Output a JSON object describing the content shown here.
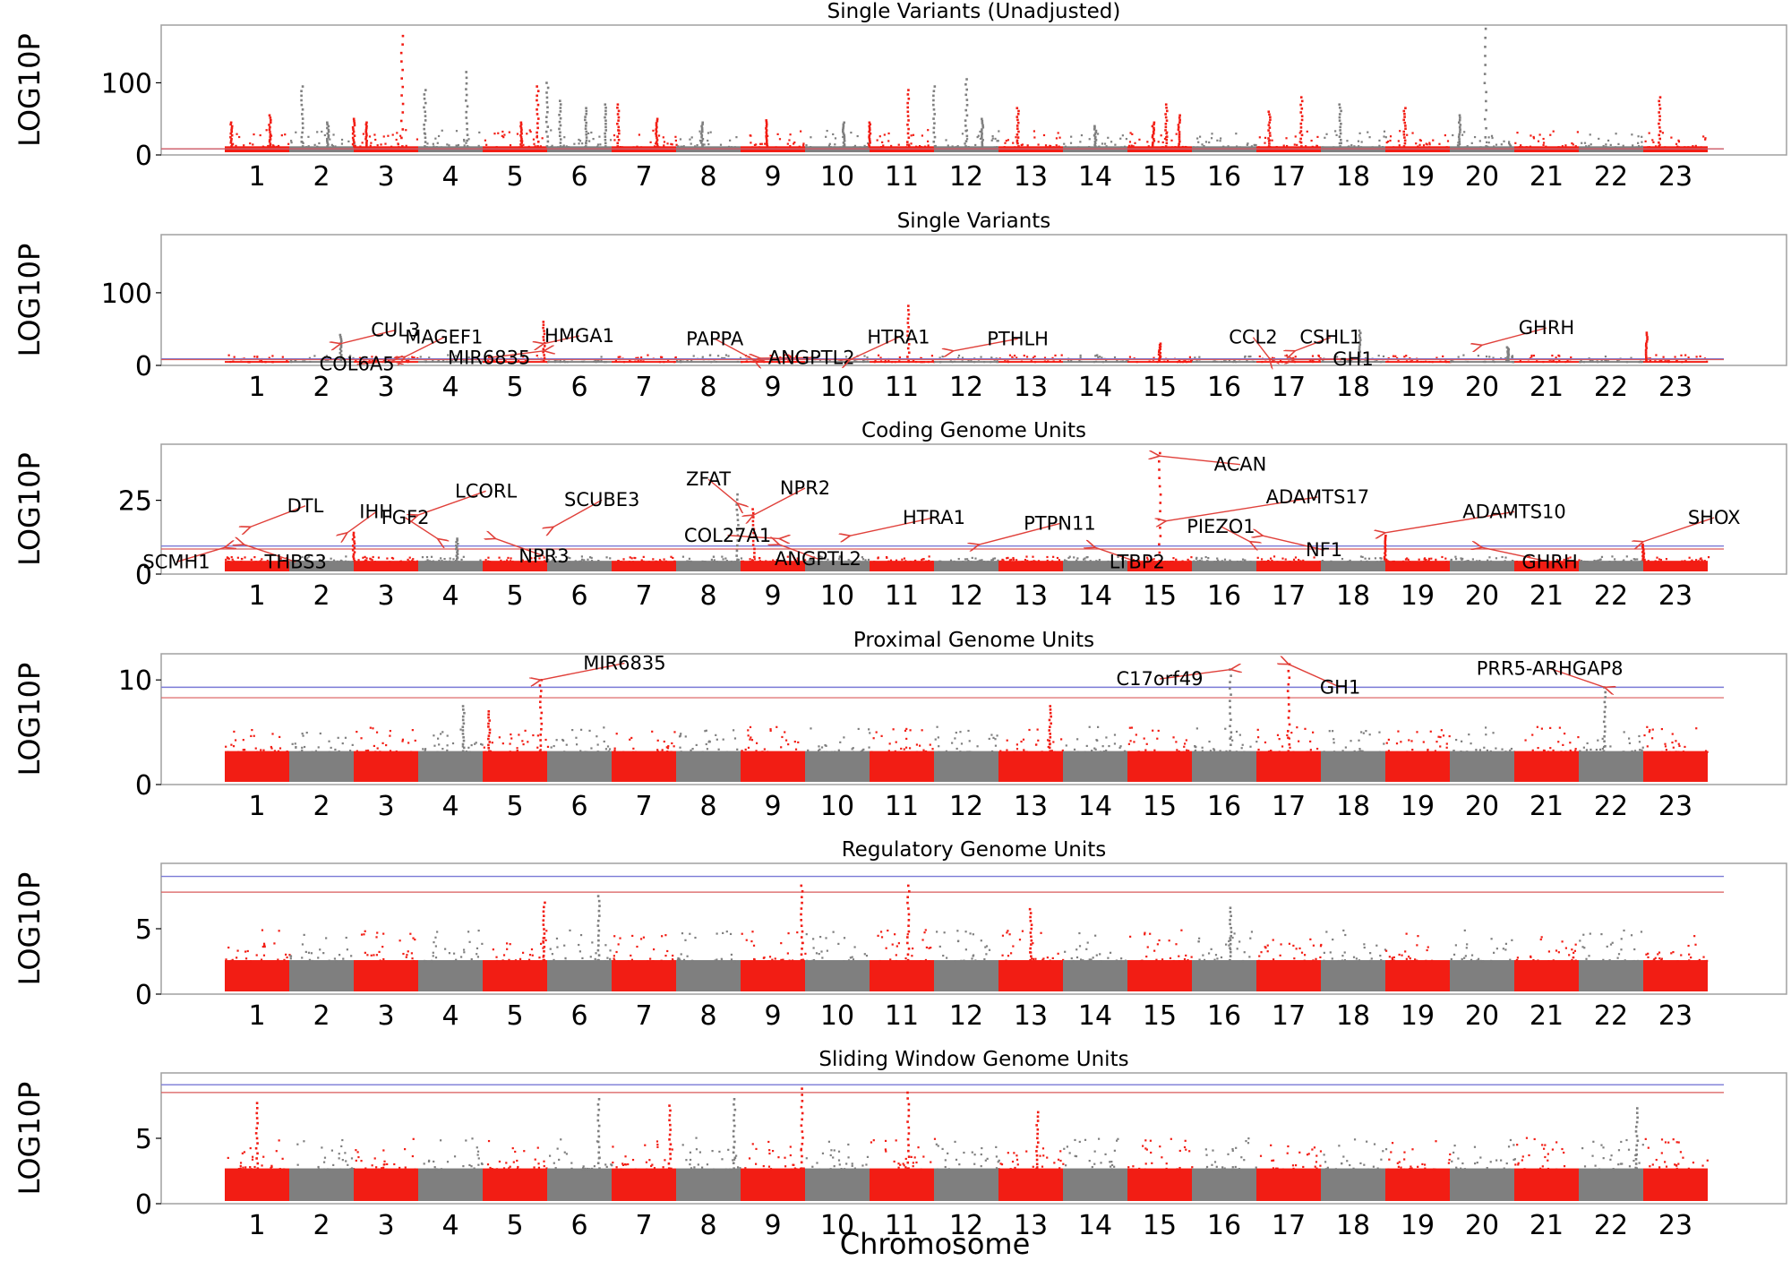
{
  "figure": {
    "xlabel": "Chromosome"
  },
  "chart_data": [
    {
      "type": "scatter",
      "title": "Single Variants (Unadjusted)",
      "ylabel": "LOG10P",
      "ylim": [
        0,
        180
      ],
      "yticks": [
        0,
        100
      ],
      "blue_threshold": 8.5,
      "red_threshold": 8.5,
      "base_level": 12,
      "noise_level": 20,
      "peaks": [
        {
          "chr": 1,
          "pos": 0.1,
          "value": 45
        },
        {
          "chr": 1,
          "pos": 0.7,
          "value": 55
        },
        {
          "chr": 2,
          "pos": 0.2,
          "value": 95
        },
        {
          "chr": 2,
          "pos": 0.6,
          "value": 45
        },
        {
          "chr": 3,
          "pos": 0.0,
          "value": 50
        },
        {
          "chr": 3,
          "pos": 0.2,
          "value": 45
        },
        {
          "chr": 3,
          "pos": 0.75,
          "value": 165
        },
        {
          "chr": 4,
          "pos": 0.1,
          "value": 90
        },
        {
          "chr": 4,
          "pos": 0.75,
          "value": 115
        },
        {
          "chr": 5,
          "pos": 0.6,
          "value": 45
        },
        {
          "chr": 5,
          "pos": 0.85,
          "value": 95
        },
        {
          "chr": 6,
          "pos": 0.0,
          "value": 100
        },
        {
          "chr": 6,
          "pos": 0.2,
          "value": 75
        },
        {
          "chr": 6,
          "pos": 0.6,
          "value": 65
        },
        {
          "chr": 6,
          "pos": 0.9,
          "value": 70
        },
        {
          "chr": 7,
          "pos": 0.1,
          "value": 70
        },
        {
          "chr": 7,
          "pos": 0.7,
          "value": 50
        },
        {
          "chr": 8,
          "pos": 0.4,
          "value": 45
        },
        {
          "chr": 9,
          "pos": 0.4,
          "value": 48
        },
        {
          "chr": 10,
          "pos": 0.6,
          "value": 45
        },
        {
          "chr": 11,
          "pos": 0.0,
          "value": 45
        },
        {
          "chr": 11,
          "pos": 0.6,
          "value": 90
        },
        {
          "chr": 12,
          "pos": 0.0,
          "value": 95
        },
        {
          "chr": 12,
          "pos": 0.5,
          "value": 105
        },
        {
          "chr": 12,
          "pos": 0.75,
          "value": 50
        },
        {
          "chr": 13,
          "pos": 0.3,
          "value": 65
        },
        {
          "chr": 14,
          "pos": 0.5,
          "value": 40
        },
        {
          "chr": 15,
          "pos": 0.4,
          "value": 45
        },
        {
          "chr": 15,
          "pos": 0.6,
          "value": 70
        },
        {
          "chr": 15,
          "pos": 0.8,
          "value": 55
        },
        {
          "chr": 17,
          "pos": 0.2,
          "value": 60
        },
        {
          "chr": 17,
          "pos": 0.7,
          "value": 80
        },
        {
          "chr": 18,
          "pos": 0.3,
          "value": 70
        },
        {
          "chr": 19,
          "pos": 0.3,
          "value": 65
        },
        {
          "chr": 20,
          "pos": 0.15,
          "value": 55
        },
        {
          "chr": 20,
          "pos": 0.55,
          "value": 175
        },
        {
          "chr": 23,
          "pos": 0.25,
          "value": 80
        }
      ],
      "genes": []
    },
    {
      "type": "scatter",
      "title": "Single Variants",
      "ylabel": "LOG10P",
      "ylim": [
        0,
        180
      ],
      "yticks": [
        0,
        100
      ],
      "blue_threshold": 9,
      "red_threshold": 8,
      "base_level": 6,
      "noise_level": 8,
      "peaks": [
        {
          "chr": 2,
          "pos": 0.8,
          "value": 42
        },
        {
          "chr": 5,
          "pos": 0.95,
          "value": 60
        },
        {
          "chr": 11,
          "pos": 0.6,
          "value": 82
        },
        {
          "chr": 15,
          "pos": 0.5,
          "value": 30
        },
        {
          "chr": 18,
          "pos": 0.6,
          "value": 48
        },
        {
          "chr": 20,
          "pos": 0.9,
          "value": 25
        },
        {
          "chr": 23,
          "pos": 0.05,
          "value": 45
        }
      ],
      "genes": [
        {
          "label": "CUL3",
          "chr": 2,
          "pos": 0.8,
          "value": 30,
          "text_chr": 3.15,
          "text_value": 40
        },
        {
          "label": "COL6A5",
          "chr": 3,
          "pos": 0.6,
          "value": 6,
          "text_chr": 2.55,
          "text_value": -7
        },
        {
          "label": "MAGEF1",
          "chr": 3,
          "pos": 0.8,
          "value": 12,
          "text_chr": 3.9,
          "text_value": 30
        },
        {
          "label": "MIR6835",
          "chr": 5,
          "pos": 0.95,
          "value": 20,
          "text_chr": 4.6,
          "text_value": 2
        },
        {
          "label": "HMGA1",
          "chr": 5,
          "pos": 0.95,
          "value": 30,
          "text_chr": 6.0,
          "text_value": 32
        },
        {
          "label": "PAPPA",
          "chr": 9,
          "pos": 0.2,
          "value": 8,
          "text_chr": 8.1,
          "text_value": 28
        },
        {
          "label": "ANGPTL2",
          "chr": 9,
          "pos": 0.3,
          "value": 10,
          "text_chr": 9.6,
          "text_value": 2
        },
        {
          "label": "HTRA1",
          "chr": 10,
          "pos": 0.7,
          "value": 8,
          "text_chr": 10.95,
          "text_value": 30
        },
        {
          "label": "PTHLH",
          "chr": 12,
          "pos": 0.3,
          "value": 20,
          "text_chr": 12.8,
          "text_value": 28
        },
        {
          "label": "CCL2",
          "chr": 17,
          "pos": 0.2,
          "value": 10,
          "text_chr": 16.45,
          "text_value": 30
        },
        {
          "label": "CSHL1",
          "chr": 17,
          "pos": 0.6,
          "value": 20,
          "text_chr": 17.65,
          "text_value": 30
        },
        {
          "label": "GH1",
          "chr": 17,
          "pos": 0.6,
          "value": 8,
          "text_chr": 18.0,
          "text_value": 0
        },
        {
          "label": "GHRH",
          "chr": 20,
          "pos": 0.5,
          "value": 28,
          "text_chr": 21.0,
          "text_value": 43
        }
      ]
    },
    {
      "type": "scatter",
      "title": "Coding Genome Units",
      "ylabel": "LOG10P",
      "ylim": [
        0,
        44
      ],
      "yticks": [
        0,
        25
      ],
      "blue_threshold": 9.5,
      "red_threshold": 8.5,
      "base_level": 4.5,
      "noise_level": 1.5,
      "peaks": [
        {
          "chr": 3,
          "pos": 0.0,
          "value": 14
        },
        {
          "chr": 4,
          "pos": 0.6,
          "value": 12
        },
        {
          "chr": 8,
          "pos": 0.95,
          "value": 27
        },
        {
          "chr": 9,
          "pos": 0.2,
          "value": 22
        },
        {
          "chr": 15,
          "pos": 0.5,
          "value": 41
        },
        {
          "chr": 19,
          "pos": 0.0,
          "value": 13
        },
        {
          "chr": 23,
          "pos": 0.0,
          "value": 10
        }
      ],
      "genes": [
        {
          "label": "SCMH1",
          "chr": 1,
          "pos": 0.0,
          "value": 9,
          "text_chr": -0.25,
          "text_value": 2
        },
        {
          "label": "DTL",
          "chr": 1,
          "pos": 0.4,
          "value": 16,
          "text_chr": 1.75,
          "text_value": 21
        },
        {
          "label": "THBS3",
          "chr": 1,
          "pos": 0.3,
          "value": 10,
          "text_chr": 1.6,
          "text_value": 2
        },
        {
          "label": "IHH",
          "chr": 2,
          "pos": 0.9,
          "value": 14,
          "text_chr": 2.85,
          "text_value": 19
        },
        {
          "label": "LCORL",
          "chr": 4,
          "pos": 0.0,
          "value": 20,
          "text_chr": 4.55,
          "text_value": 26
        },
        {
          "label": "FGF2",
          "chr": 4,
          "pos": 0.3,
          "value": 12,
          "text_chr": 3.3,
          "text_value": 17
        },
        {
          "label": "NPR3",
          "chr": 5,
          "pos": 0.2,
          "value": 12,
          "text_chr": 5.45,
          "text_value": 4
        },
        {
          "label": "SCUBE3",
          "chr": 6,
          "pos": 0.1,
          "value": 16,
          "text_chr": 6.35,
          "text_value": 23
        },
        {
          "label": "ZFAT",
          "chr": 8,
          "pos": 0.95,
          "value": 24,
          "text_chr": 8.0,
          "text_value": 30
        },
        {
          "label": "NPR2",
          "chr": 9,
          "pos": 0.2,
          "value": 20,
          "text_chr": 9.5,
          "text_value": 27
        },
        {
          "label": "COL27A1",
          "chr": 9,
          "pos": 0.6,
          "value": 12,
          "text_chr": 8.3,
          "text_value": 11
        },
        {
          "label": "ANGPTL2",
          "chr": 9,
          "pos": 0.6,
          "value": 10,
          "text_chr": 9.7,
          "text_value": 3
        },
        {
          "label": "HTRA1",
          "chr": 10,
          "pos": 0.7,
          "value": 13,
          "text_chr": 11.5,
          "text_value": 17
        },
        {
          "label": "PTPN11",
          "chr": 12,
          "pos": 0.7,
          "value": 10,
          "text_chr": 13.45,
          "text_value": 15
        },
        {
          "label": "LTBP2",
          "chr": 14,
          "pos": 0.5,
          "value": 9,
          "text_chr": 14.65,
          "text_value": 2
        },
        {
          "label": "ACAN",
          "chr": 15,
          "pos": 0.5,
          "value": 40,
          "text_chr": 16.25,
          "text_value": 35
        },
        {
          "label": "ADAMTS17",
          "chr": 15,
          "pos": 0.6,
          "value": 18,
          "text_chr": 17.45,
          "text_value": 24
        },
        {
          "label": "PIEZO1",
          "chr": 16,
          "pos": 0.9,
          "value": 11,
          "text_chr": 15.95,
          "text_value": 14
        },
        {
          "label": "NF1",
          "chr": 17,
          "pos": 0.1,
          "value": 13,
          "text_chr": 17.55,
          "text_value": 6
        },
        {
          "label": "ADAMTS10",
          "chr": 19,
          "pos": 0.0,
          "value": 14,
          "text_chr": 20.5,
          "text_value": 19
        },
        {
          "label": "GHRH",
          "chr": 20,
          "pos": 0.5,
          "value": 9,
          "text_chr": 21.05,
          "text_value": 2
        },
        {
          "label": "SHOX",
          "chr": 23,
          "pos": 0.0,
          "value": 11,
          "text_chr": 23.6,
          "text_value": 17
        }
      ]
    },
    {
      "type": "scatter",
      "title": "Proximal Genome Units",
      "ylabel": "LOG10P",
      "ylim": [
        0,
        12.5
      ],
      "yticks": [
        0,
        10
      ],
      "blue_threshold": 9.3,
      "red_threshold": 8.3,
      "base_level": 3.2,
      "noise_level": 2.0,
      "peaks": [
        {
          "chr": 4,
          "pos": 0.7,
          "value": 7.5
        },
        {
          "chr": 5,
          "pos": 0.1,
          "value": 7.0
        },
        {
          "chr": 5,
          "pos": 0.9,
          "value": 10
        },
        {
          "chr": 13,
          "pos": 0.8,
          "value": 7.5
        },
        {
          "chr": 16,
          "pos": 0.6,
          "value": 11
        },
        {
          "chr": 17,
          "pos": 0.5,
          "value": 11.5
        },
        {
          "chr": 22,
          "pos": 0.4,
          "value": 9.3
        }
      ],
      "genes": [
        {
          "label": "MIR6835",
          "chr": 5,
          "pos": 0.9,
          "value": 10,
          "text_chr": 6.7,
          "text_value": 11
        },
        {
          "label": "C17orf49",
          "chr": 16,
          "pos": 0.6,
          "value": 11,
          "text_chr": 15.0,
          "text_value": 9.5
        },
        {
          "label": "GH1",
          "chr": 17,
          "pos": 0.5,
          "value": 11.5,
          "text_chr": 17.8,
          "text_value": 8.7
        },
        {
          "label": "PRR5-ARHGAP8",
          "chr": 22,
          "pos": 0.4,
          "value": 9.3,
          "text_chr": 21.05,
          "text_value": 10.5
        }
      ]
    },
    {
      "type": "scatter",
      "title": "Regulatory Genome Units",
      "ylabel": "LOG10P",
      "ylim": [
        0,
        10
      ],
      "yticks": [
        0,
        5
      ],
      "blue_threshold": 9.0,
      "red_threshold": 7.8,
      "base_level": 2.6,
      "noise_level": 2.0,
      "peaks": [
        {
          "chr": 5,
          "pos": 0.95,
          "value": 7.0
        },
        {
          "chr": 6,
          "pos": 0.8,
          "value": 7.5
        },
        {
          "chr": 9,
          "pos": 0.95,
          "value": 8.3
        },
        {
          "chr": 11,
          "pos": 0.6,
          "value": 8.3
        },
        {
          "chr": 13,
          "pos": 0.5,
          "value": 6.5
        },
        {
          "chr": 16,
          "pos": 0.6,
          "value": 6.6
        }
      ],
      "genes": []
    },
    {
      "type": "scatter",
      "title": "Sliding Window Genome Units",
      "ylabel": "LOG10P",
      "ylim": [
        0,
        10
      ],
      "yticks": [
        0,
        5
      ],
      "blue_threshold": 9.1,
      "red_threshold": 8.5,
      "base_level": 2.7,
      "noise_level": 2.0,
      "peaks": [
        {
          "chr": 1,
          "pos": 0.5,
          "value": 7.7
        },
        {
          "chr": 6,
          "pos": 0.8,
          "value": 8.0
        },
        {
          "chr": 7,
          "pos": 0.9,
          "value": 7.5
        },
        {
          "chr": 8,
          "pos": 0.9,
          "value": 8.0
        },
        {
          "chr": 9,
          "pos": 0.95,
          "value": 8.8
        },
        {
          "chr": 11,
          "pos": 0.6,
          "value": 8.5
        },
        {
          "chr": 13,
          "pos": 0.6,
          "value": 7.0
        },
        {
          "chr": 22,
          "pos": 0.9,
          "value": 7.3
        }
      ],
      "genes": []
    }
  ],
  "chromosomes": [
    "1",
    "2",
    "3",
    "4",
    "5",
    "6",
    "7",
    "8",
    "9",
    "10",
    "11",
    "12",
    "13",
    "14",
    "15",
    "16",
    "17",
    "18",
    "19",
    "20",
    "21",
    "22",
    "23"
  ],
  "colors": {
    "red": "#f21d14",
    "grey": "#7f7f7f",
    "blue_line": "#7a7ad6",
    "red_line": "#d95a5a",
    "arrow": "#e0403a",
    "frame": "#a0a0a0"
  }
}
